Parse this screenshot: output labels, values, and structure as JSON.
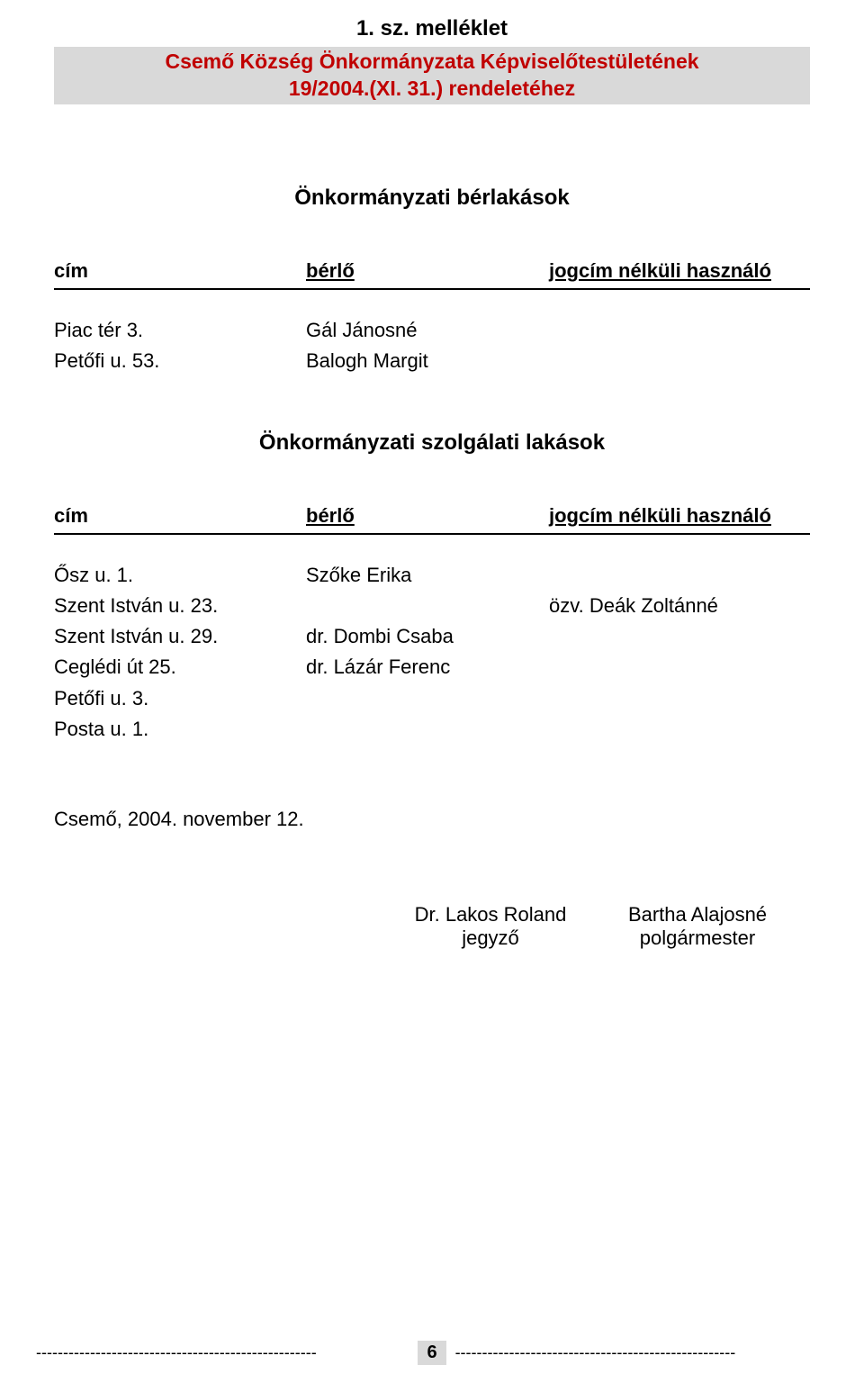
{
  "header": {
    "title": "1. sz. melléklet",
    "subtitle_line1": "Csemő Község Önkormányzata Képviselőtestületének",
    "subtitle_line2": "19/2004.(XI. 31.) rendeletéhez",
    "subtitle_color": "#c00000",
    "banner_bg": "#d9d9d9"
  },
  "section1": {
    "heading": "Önkormányzati bérlakások",
    "columns": {
      "c1": "cím",
      "c2": "bérlő",
      "c3": "jogcím nélküli használó"
    },
    "rows": [
      {
        "address": "Piac tér 3.",
        "tenant": "Gál Jánosné",
        "user": ""
      },
      {
        "address": "Petőfi u. 53.",
        "tenant": "Balogh Margit",
        "user": ""
      }
    ]
  },
  "section2": {
    "heading": "Önkormányzati szolgálati lakások",
    "columns": {
      "c1": "cím",
      "c2": "bérlő",
      "c3": "jogcím nélküli használó"
    },
    "rows": [
      {
        "address": "Ősz u. 1.",
        "tenant": "Szőke Erika",
        "user": ""
      },
      {
        "address": "Szent István u. 23.",
        "tenant": "",
        "user": "özv. Deák Zoltánné"
      },
      {
        "address": "Szent István u. 29.",
        "tenant": "dr. Dombi Csaba",
        "user": ""
      },
      {
        "address": "Ceglédi út 25.",
        "tenant": "dr. Lázár Ferenc",
        "user": ""
      },
      {
        "address": "Petőfi u. 3.",
        "tenant": "",
        "user": ""
      },
      {
        "address": "Posta u. 1.",
        "tenant": "",
        "user": ""
      }
    ]
  },
  "date_line": "Csemő, 2004. november 12.",
  "signatures": {
    "left_name": "Dr. Lakos Roland",
    "left_title": "jegyző",
    "right_name": "Bartha Alajosné",
    "right_title": "polgármester"
  },
  "footer": {
    "dash_segment": "----------------------------------------------------",
    "page_number": "6"
  }
}
